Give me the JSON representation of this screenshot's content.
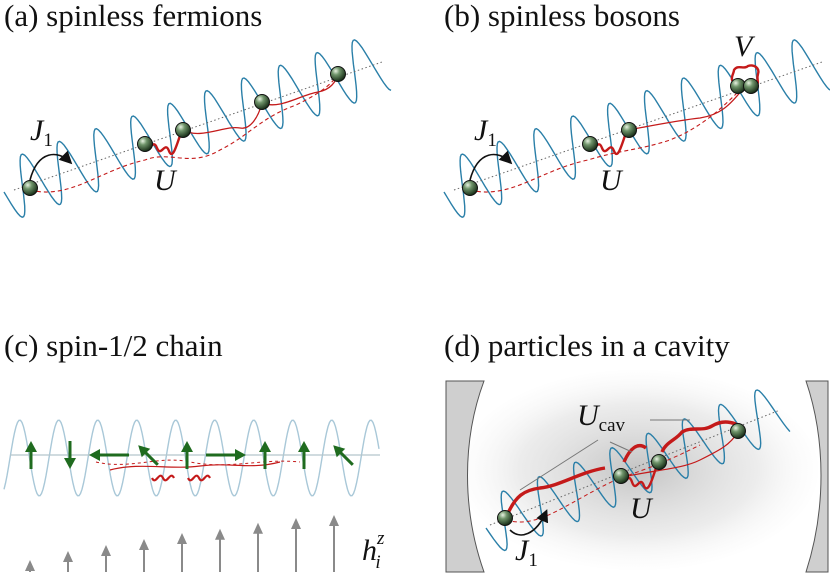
{
  "panels": {
    "a": {
      "title": "(a) spinless fermions",
      "label_J": "J",
      "label_J_sub": "1",
      "label_U": "U"
    },
    "b": {
      "title": "(b) spinless bosons",
      "label_J": "J",
      "label_J_sub": "1",
      "label_U": "U",
      "label_V": "V"
    },
    "c": {
      "title": "(c) spin-1/2 chain",
      "label_h": "h",
      "label_h_sub": "i",
      "label_h_sup": "z",
      "spins": [
        "up",
        "down",
        "left",
        "up-left",
        "up",
        "right",
        "up",
        "up",
        "up-left"
      ],
      "field_levels": [
        0.2,
        0.35,
        0.45,
        0.55,
        0.65,
        0.72,
        0.82,
        0.9,
        0.95
      ]
    },
    "d": {
      "title": "(d) particles in a cavity",
      "label_Ucav": "U",
      "label_Ucav_sub": "cav",
      "label_U": "U",
      "label_J": "J",
      "label_J_sub": "1"
    }
  },
  "colors": {
    "lattice": "#2a7fa8",
    "lattice_faint": "#a9c8d8",
    "interaction": "#c41a1a",
    "particle": "#2e4d2e",
    "spin_arrow": "#1f6b1f",
    "field_arrow": "#8a8a8a",
    "mirror": "#cfcfcf"
  },
  "icons": {
    "particle": "green-sphere-icon",
    "spin": "arrow-icon",
    "mirror": "cavity-mirror-icon"
  }
}
